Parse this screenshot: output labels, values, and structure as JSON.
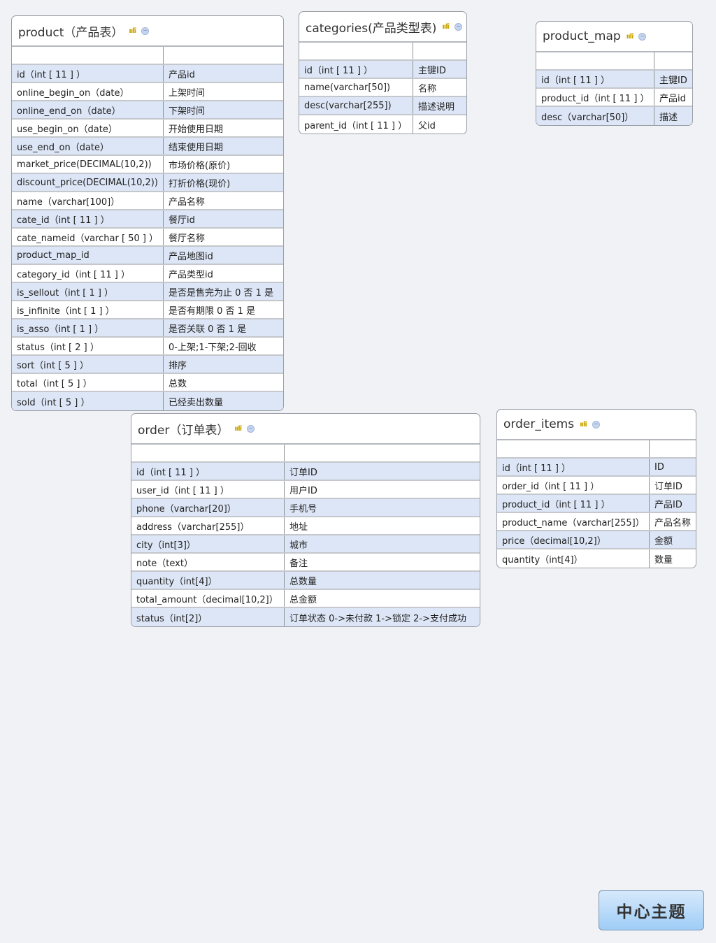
{
  "tables": [
    {
      "title": "product（产品表）",
      "rows": [
        [
          "id（int [ 11 ] ）",
          "产品id"
        ],
        [
          "online_begin_on（date）",
          "上架时间"
        ],
        [
          "online_end_on（date）",
          "下架时间"
        ],
        [
          "use_begin_on（date）",
          "开始使用日期"
        ],
        [
          "use_end_on（date）",
          "结束使用日期"
        ],
        [
          "market_price(DECIMAL(10,2))",
          "市场价格(原价)"
        ],
        [
          "discount_price(DECIMAL(10,2))",
          "打折价格(现价)"
        ],
        [
          "name（varchar[100]）",
          "产品名称"
        ],
        [
          "cate_id（int [ 11 ] ）",
          "餐厅id"
        ],
        [
          "cate_nameid（varchar [ 50 ] ）",
          "餐厅名称"
        ],
        [
          "product_map_id",
          "产品地图id"
        ],
        [
          "category_id（int [ 11 ] ）",
          "产品类型id"
        ],
        [
          "is_sellout（int [ 1 ] ）",
          "是否是售完为止  0 否  1 是"
        ],
        [
          "is_infinite（int [ 1 ] ）",
          "是否有期限  0 否  1 是"
        ],
        [
          "is_asso（int [ 1 ] ）",
          "是否关联  0 否  1 是"
        ],
        [
          "status（int [ 2 ] ）",
          "0-上架;1-下架;2-回收"
        ],
        [
          "sort（int [ 5 ] ）",
          "排序"
        ],
        [
          "total（int [ 5 ] ）",
          "总数"
        ],
        [
          "sold（int [ 5 ] ）",
          "已经卖出数量"
        ]
      ]
    },
    {
      "title": "categories(产品类型表)",
      "rows": [
        [
          "id（int [ 11 ] ）",
          "主键ID"
        ],
        [
          "name(varchar[50])",
          "名称"
        ],
        [
          "desc(varchar[255])",
          "描述说明"
        ],
        [
          "parent_id（int [ 11 ] ）",
          "父id"
        ]
      ]
    },
    {
      "title": "product_map",
      "rows": [
        [
          "id（int [ 11 ] ）",
          "主键ID"
        ],
        [
          "product_id（int [ 11 ] ）",
          "产品id"
        ],
        [
          "desc（varchar[50]）",
          "描述"
        ]
      ]
    },
    {
      "title": "order（订单表）",
      "rows": [
        [
          "id（int [ 11 ] ）",
          "订单ID"
        ],
        [
          "user_id（int [ 11 ] ）",
          "用户ID"
        ],
        [
          "phone（varchar[20]）",
          "手机号"
        ],
        [
          "address（varchar[255]）",
          "地址"
        ],
        [
          "city（int[3]）",
          "城市"
        ],
        [
          "note（text）",
          "备注"
        ],
        [
          "quantity（int[4]）",
          "总数量"
        ],
        [
          "total_amount（decimal[10,2]）",
          "总金额"
        ],
        [
          "status（int[2]）",
          "订单状态 0->未付款  1->锁定  2->支付成功"
        ]
      ]
    },
    {
      "title": "order_items",
      "rows": [
        [
          "id（int [ 11 ] ）",
          "ID"
        ],
        [
          "order_id（int [ 11 ] ）",
          "订单ID"
        ],
        [
          "product_id（int [ 11 ] ）",
          "产品ID"
        ],
        [
          "product_name（varchar[255]）",
          "产品名称"
        ],
        [
          "price（decimal[10,2]）",
          "金额"
        ],
        [
          "quantity（int[4]）",
          "数量"
        ]
      ]
    }
  ],
  "central_topic": "中心主题",
  "colors": {
    "row_alt": "#dde6f6",
    "topic_bg": "#b7dbfa"
  }
}
